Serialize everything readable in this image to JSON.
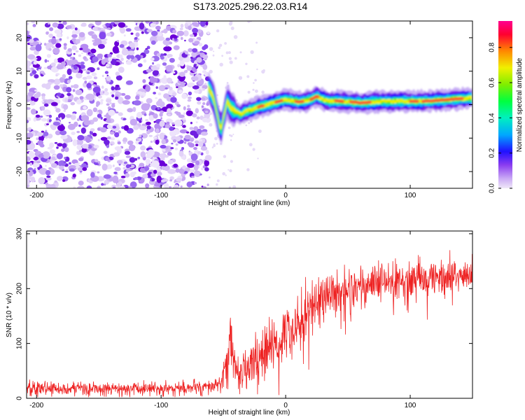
{
  "title": "S173.2025.296.22.03.R14",
  "chart_data": [
    {
      "type": "heatmap",
      "name": "spectrogram",
      "xlabel": "Height of straight line (km)",
      "ylabel": "Frequency (Hz)",
      "xlim": [
        -208,
        150
      ],
      "ylim": [
        -25,
        25
      ],
      "xticks": [
        -200,
        -100,
        0,
        100
      ],
      "yticks": [
        -20,
        -10,
        0,
        10,
        20
      ],
      "noise_region_x": [
        -208,
        -62
      ],
      "signal_centerline": {
        "x": [
          -62,
          -58,
          -55,
          -52,
          -50,
          -47,
          -44,
          -40,
          -36,
          -32,
          -28,
          -24,
          -20,
          -15,
          -10,
          -5,
          0,
          5,
          10,
          15,
          20,
          25,
          30,
          35,
          40,
          45,
          50,
          55,
          60,
          70,
          80,
          90,
          100,
          110,
          120,
          130,
          140,
          150
        ],
        "y": [
          5,
          2,
          -3,
          -8,
          -4,
          1,
          -1,
          -2,
          -3,
          -2,
          -1.5,
          -1,
          -0.5,
          0,
          0.5,
          1,
          1.5,
          1.2,
          0.8,
          1,
          1.5,
          2.5,
          1.5,
          1,
          1.2,
          1,
          0.8,
          0.8,
          0.5,
          0.8,
          1,
          1,
          1,
          1,
          1.2,
          1.5,
          1.8,
          2
        ]
      },
      "colorbar": {
        "label": "Normalized spectral amplitude",
        "range": [
          0,
          0.95
        ],
        "ticks": [
          0.0,
          0.2,
          0.4,
          0.6,
          0.8
        ],
        "tick_labels": [
          "0.0",
          "0.2",
          "0.4",
          "0.6",
          "0.8"
        ],
        "colormap": [
          "#f0e8f8",
          "#9a6cf0",
          "#6a00d8",
          "#1010ff",
          "#00c8ff",
          "#00ff80",
          "#40e000",
          "#e8f000",
          "#ff8000",
          "#ff0030",
          "#ff0090"
        ]
      }
    },
    {
      "type": "line",
      "name": "snr",
      "xlabel": "Height of straight line (km)",
      "ylabel": "SNR (10 * v/v)",
      "xlim": [
        -208,
        150
      ],
      "ylim": [
        0,
        305
      ],
      "xticks": [
        -200,
        -100,
        0,
        100
      ],
      "yticks": [
        0,
        100,
        200,
        300
      ],
      "color": "#ee2222",
      "envelope": {
        "x": [
          -208,
          -150,
          -100,
          -60,
          -52,
          -47,
          -44,
          -42,
          -38,
          -30,
          -20,
          -10,
          0,
          10,
          20,
          30,
          40,
          50,
          60,
          70,
          80,
          90,
          100,
          110,
          120,
          130,
          140,
          150
        ],
        "mean": [
          18,
          18,
          18,
          20,
          28,
          60,
          120,
          70,
          45,
          60,
          75,
          95,
          115,
          140,
          165,
          185,
          195,
          200,
          205,
          208,
          210,
          212,
          215,
          218,
          220,
          222,
          223,
          225
        ],
        "spread": [
          12,
          12,
          12,
          14,
          20,
          45,
          60,
          40,
          35,
          45,
          50,
          55,
          55,
          55,
          55,
          55,
          50,
          45,
          45,
          40,
          40,
          40,
          40,
          38,
          35,
          35,
          35,
          35
        ]
      }
    }
  ]
}
